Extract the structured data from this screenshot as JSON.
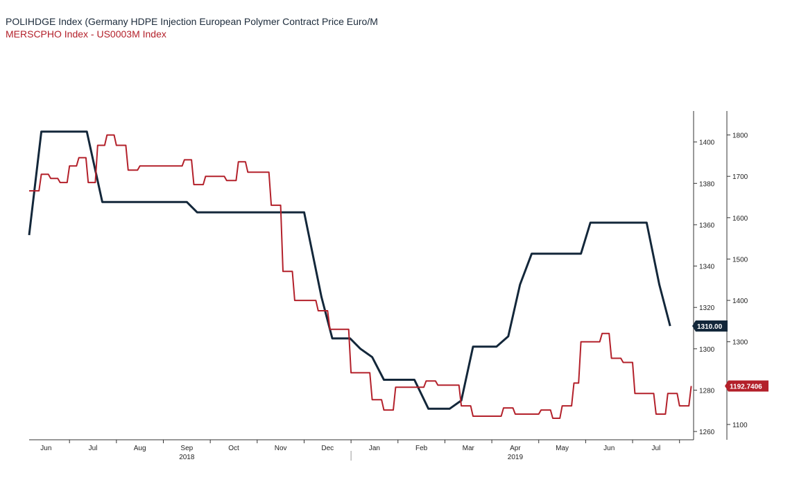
{
  "titles": {
    "series1": "POLIHDGE Index (Germany HDPE Injection European Polymer Contract Price Euro/M",
    "series2": "MERSCPHO Index - US0003M Index"
  },
  "colors": {
    "series1": "#13273a",
    "series2": "#b3202a"
  },
  "chart_data": {
    "type": "line",
    "x_labels": [
      {
        "label": "Jun",
        "x": 6.5
      },
      {
        "label": "Jul",
        "x": 7.5
      },
      {
        "label": "Aug",
        "x": 8.5
      },
      {
        "label": "Sep",
        "x": 9.5
      },
      {
        "label": "Oct",
        "x": 10.5
      },
      {
        "label": "Nov",
        "x": 11.5
      },
      {
        "label": "Dec",
        "x": 12.5
      },
      {
        "label": "Jan",
        "x": 13.5
      },
      {
        "label": "Feb",
        "x": 14.5
      },
      {
        "label": "Mar",
        "x": 15.5
      },
      {
        "label": "Apr",
        "x": 16.5
      },
      {
        "label": "May",
        "x": 17.5
      },
      {
        "label": "Jun",
        "x": 18.5
      },
      {
        "label": "Jul",
        "x": 19.5
      }
    ],
    "year_labels": [
      {
        "label": "2018",
        "x": 9.5
      },
      {
        "label": "2019",
        "x": 16.5
      }
    ],
    "xlim": [
      6.14,
      20.3
    ],
    "left_axis": {
      "ticks": [
        1260,
        1280,
        1300,
        1320,
        1340,
        1360,
        1380,
        1400
      ],
      "ylim": [
        1256,
        1415
      ]
    },
    "right_axis": {
      "ticks": [
        1100,
        1200,
        1300,
        1400,
        1500,
        1600,
        1700,
        1800
      ],
      "ylim": [
        1063,
        1858
      ]
    },
    "series": [
      {
        "name": "POLIHDGE Index",
        "axis": "left",
        "last_label": "1310.00",
        "points": [
          [
            6.14,
            1355
          ],
          [
            6.4,
            1405
          ],
          [
            7.3,
            1405
          ],
          [
            7.37,
            1405
          ],
          [
            7.7,
            1371
          ],
          [
            9.5,
            1371
          ],
          [
            9.72,
            1366
          ],
          [
            12.0,
            1366
          ],
          [
            12.37,
            1325
          ],
          [
            12.6,
            1305
          ],
          [
            12.98,
            1305
          ],
          [
            13.2,
            1300
          ],
          [
            13.45,
            1296
          ],
          [
            13.7,
            1285
          ],
          [
            14.35,
            1285
          ],
          [
            14.65,
            1271
          ],
          [
            15.1,
            1271
          ],
          [
            15.35,
            1275
          ],
          [
            15.6,
            1301
          ],
          [
            16.1,
            1301
          ],
          [
            16.35,
            1306
          ],
          [
            16.6,
            1331
          ],
          [
            16.85,
            1346
          ],
          [
            17.9,
            1346
          ],
          [
            18.1,
            1361
          ],
          [
            19.3,
            1361
          ],
          [
            19.57,
            1331
          ],
          [
            19.8,
            1311
          ]
        ]
      },
      {
        "name": "MERSCPHO Index - US0003M Index",
        "axis": "right",
        "last_label": "1192.7406",
        "points": [
          [
            6.14,
            1665
          ],
          [
            6.35,
            1665
          ],
          [
            6.4,
            1705
          ],
          [
            6.55,
            1705
          ],
          [
            6.6,
            1695
          ],
          [
            6.75,
            1695
          ],
          [
            6.8,
            1685
          ],
          [
            6.95,
            1685
          ],
          [
            7.0,
            1725
          ],
          [
            7.15,
            1725
          ],
          [
            7.2,
            1745
          ],
          [
            7.35,
            1745
          ],
          [
            7.4,
            1685
          ],
          [
            7.55,
            1685
          ],
          [
            7.6,
            1775
          ],
          [
            7.75,
            1775
          ],
          [
            7.8,
            1800
          ],
          [
            7.95,
            1800
          ],
          [
            8.0,
            1775
          ],
          [
            8.2,
            1775
          ],
          [
            8.25,
            1715
          ],
          [
            8.45,
            1715
          ],
          [
            8.5,
            1725
          ],
          [
            9.4,
            1725
          ],
          [
            9.45,
            1740
          ],
          [
            9.6,
            1740
          ],
          [
            9.65,
            1680
          ],
          [
            9.85,
            1680
          ],
          [
            9.9,
            1700
          ],
          [
            10.3,
            1700
          ],
          [
            10.35,
            1690
          ],
          [
            10.55,
            1690
          ],
          [
            10.6,
            1735
          ],
          [
            10.75,
            1735
          ],
          [
            10.8,
            1710
          ],
          [
            11.25,
            1710
          ],
          [
            11.3,
            1630
          ],
          [
            11.5,
            1630
          ],
          [
            11.55,
            1470
          ],
          [
            11.75,
            1470
          ],
          [
            11.8,
            1400
          ],
          [
            12.25,
            1400
          ],
          [
            12.3,
            1375
          ],
          [
            12.5,
            1375
          ],
          [
            12.55,
            1330
          ],
          [
            12.95,
            1330
          ],
          [
            13.0,
            1225
          ],
          [
            13.4,
            1225
          ],
          [
            13.45,
            1160
          ],
          [
            13.65,
            1160
          ],
          [
            13.7,
            1135
          ],
          [
            13.9,
            1135
          ],
          [
            13.95,
            1190
          ],
          [
            14.55,
            1190
          ],
          [
            14.6,
            1205
          ],
          [
            14.8,
            1205
          ],
          [
            14.85,
            1195
          ],
          [
            15.3,
            1195
          ],
          [
            15.35,
            1145
          ],
          [
            15.55,
            1145
          ],
          [
            15.6,
            1120
          ],
          [
            16.2,
            1120
          ],
          [
            16.25,
            1140
          ],
          [
            16.45,
            1140
          ],
          [
            16.5,
            1125
          ],
          [
            17.0,
            1125
          ],
          [
            17.05,
            1135
          ],
          [
            17.25,
            1135
          ],
          [
            17.3,
            1115
          ],
          [
            17.45,
            1115
          ],
          [
            17.5,
            1145
          ],
          [
            17.7,
            1145
          ],
          [
            17.75,
            1200
          ],
          [
            17.85,
            1200
          ],
          [
            17.9,
            1300
          ],
          [
            18.3,
            1300
          ],
          [
            18.35,
            1320
          ],
          [
            18.5,
            1320
          ],
          [
            18.55,
            1260
          ],
          [
            18.75,
            1260
          ],
          [
            18.8,
            1250
          ],
          [
            19.0,
            1250
          ],
          [
            19.05,
            1175
          ],
          [
            19.45,
            1175
          ],
          [
            19.5,
            1125
          ],
          [
            19.7,
            1125
          ],
          [
            19.75,
            1175
          ],
          [
            19.95,
            1175
          ],
          [
            20.0,
            1145
          ],
          [
            20.2,
            1145
          ],
          [
            20.25,
            1193
          ]
        ]
      }
    ]
  }
}
